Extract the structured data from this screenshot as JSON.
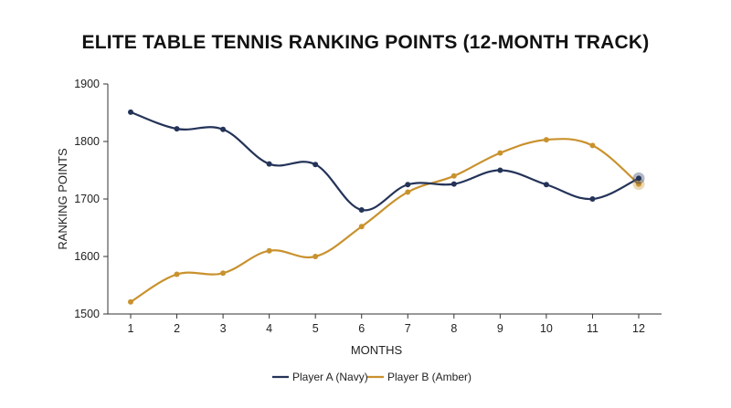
{
  "chart_data": {
    "type": "line",
    "title": "ELITE TABLE TENNIS RANKING POINTS (12-MONTH TRACK)",
    "xlabel": "MONTHS",
    "ylabel": "RANKING POINTS",
    "x": [
      1,
      2,
      3,
      4,
      5,
      6,
      7,
      8,
      9,
      10,
      11,
      12
    ],
    "x_tick_labels": [
      "1",
      "2",
      "3",
      "4",
      "5",
      "6",
      "7",
      "8",
      "9",
      "10",
      "11",
      "12"
    ],
    "ylim": [
      1500,
      1900
    ],
    "y_ticks": [
      1500,
      1600,
      1700,
      1800,
      1900
    ],
    "y_tick_labels": [
      "1500",
      "1600",
      "1700",
      "1800",
      "1900"
    ],
    "grid": false,
    "legend_position": "bottom",
    "series": [
      {
        "name": "Player A (Navy)",
        "color": "#243358",
        "values": [
          1851,
          1822,
          1821,
          1761,
          1760,
          1681,
          1725,
          1726,
          1750,
          1725,
          1700,
          1736
        ]
      },
      {
        "name": "Player B (Amber)",
        "color": "#C9922E",
        "values": [
          1521,
          1569,
          1571,
          1610,
          1600,
          1652,
          1712,
          1740,
          1780,
          1803,
          1793,
          1726
        ]
      }
    ]
  }
}
